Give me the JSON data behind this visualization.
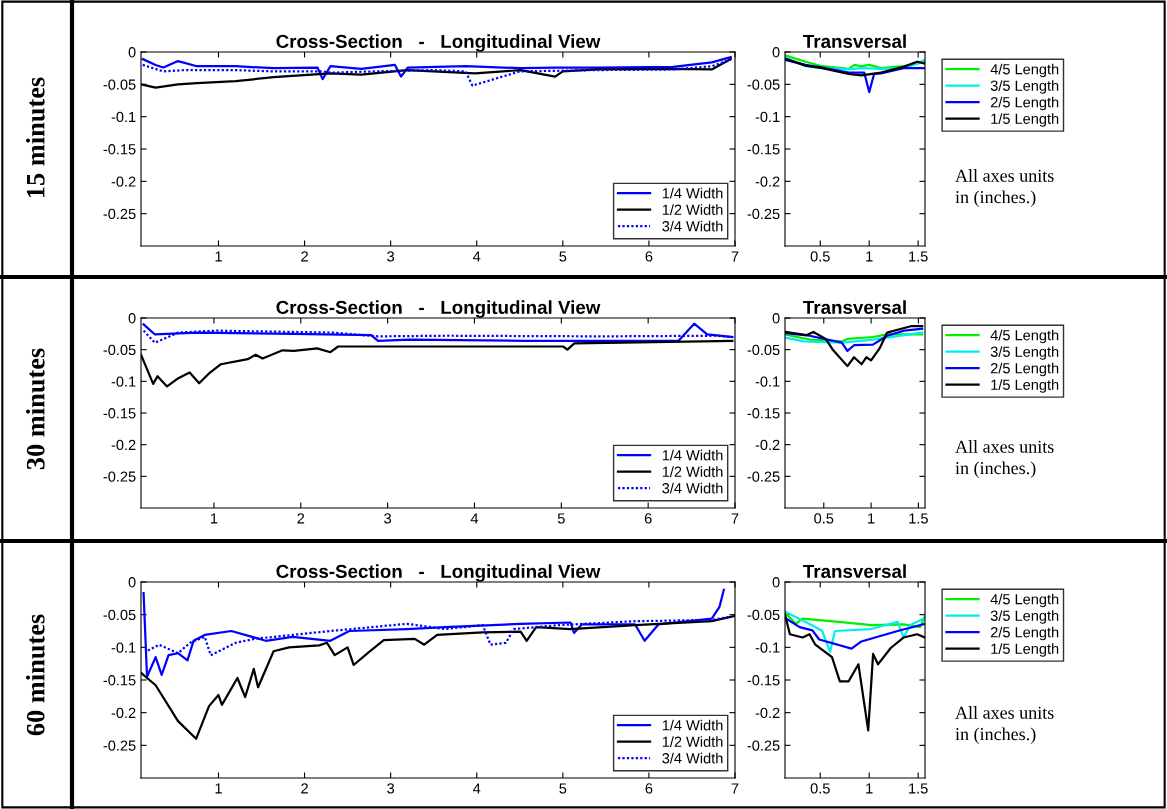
{
  "chart_data": [
    {
      "type": "line",
      "title": "Cross-Section   -   Longitudinal View",
      "xlim": [
        0.1,
        7
      ],
      "ylim": [
        -0.3,
        0
      ],
      "xticks": [
        1,
        2,
        3,
        4,
        5,
        6,
        7
      ],
      "yticks": [
        0,
        -0.05,
        -0.1,
        -0.15,
        -0.2,
        -0.25
      ],
      "legend": "bottom right",
      "annotations": [
        "15 minutes"
      ],
      "series": [
        {
          "name": "1/4 Width",
          "color": "#0000ff",
          "line_style": "solid",
          "x": [
            0.12,
            0.27,
            0.36,
            0.53,
            0.75,
            1.2,
            1.64,
            2.15,
            2.21,
            2.3,
            2.66,
            3.05,
            3.12,
            3.2,
            3.87,
            4.51,
            4.91,
            5.4,
            6.28,
            6.73,
            6.95
          ],
          "values": [
            -0.011,
            -0.02,
            -0.024,
            -0.014,
            -0.022,
            -0.022,
            -0.025,
            -0.024,
            -0.042,
            -0.022,
            -0.026,
            -0.02,
            -0.038,
            -0.024,
            -0.022,
            -0.025,
            -0.024,
            -0.024,
            -0.023,
            -0.016,
            -0.008
          ]
        },
        {
          "name": "1/2 Width",
          "color": "#000000",
          "line_style": "solid",
          "x": [
            0.1,
            0.27,
            0.53,
            0.75,
            1.2,
            1.64,
            2.3,
            2.66,
            3.19,
            3.98,
            4.51,
            4.91,
            5.0,
            5.4,
            6.28,
            6.73,
            6.95
          ],
          "values": [
            -0.05,
            -0.055,
            -0.05,
            -0.048,
            -0.045,
            -0.039,
            -0.033,
            -0.035,
            -0.028,
            -0.033,
            -0.028,
            -0.038,
            -0.03,
            -0.027,
            -0.026,
            -0.027,
            -0.011
          ]
        },
        {
          "name": "3/4 Width",
          "color": "#0000ff",
          "line_style": "dotted",
          "x": [
            0.12,
            0.36,
            0.6,
            1.2,
            1.64,
            2.21,
            2.3,
            2.8,
            3.5,
            3.87,
            3.95,
            4.5,
            5.4,
            6.28,
            6.73,
            6.95
          ],
          "values": [
            -0.02,
            -0.03,
            -0.028,
            -0.028,
            -0.03,
            -0.03,
            -0.032,
            -0.03,
            -0.028,
            -0.03,
            -0.052,
            -0.03,
            -0.028,
            -0.027,
            -0.022,
            -0.012
          ]
        }
      ]
    },
    {
      "type": "line",
      "title": "Transversal",
      "xlim": [
        0.14,
        1.57
      ],
      "ylim": [
        -0.3,
        0
      ],
      "xticks": [
        0.5,
        1,
        1.5
      ],
      "yticks": [
        0,
        -0.05,
        -0.1,
        -0.15,
        -0.2,
        -0.25
      ],
      "legend": "right",
      "annotations": [
        "All axes units\nin (inches.)"
      ],
      "series": [
        {
          "name": "4/5 Length",
          "color": "#00ee00",
          "line_style": "solid",
          "x": [
            0.14,
            0.35,
            0.52,
            0.79,
            0.85,
            0.92,
            1.0,
            1.12,
            1.35,
            1.49,
            1.57
          ],
          "values": [
            -0.005,
            -0.015,
            -0.022,
            -0.026,
            -0.02,
            -0.022,
            -0.02,
            -0.025,
            -0.022,
            -0.018,
            -0.015
          ]
        },
        {
          "name": "3/5 Length",
          "color": "#00eeee",
          "line_style": "solid",
          "x": [
            0.14,
            0.35,
            0.52,
            0.79,
            0.92,
            1.12,
            1.35,
            1.49,
            1.57
          ],
          "values": [
            -0.008,
            -0.022,
            -0.025,
            -0.027,
            -0.025,
            -0.026,
            -0.025,
            -0.018,
            -0.012
          ]
        },
        {
          "name": "2/5 Length",
          "color": "#0000ff",
          "line_style": "solid",
          "x": [
            0.14,
            0.35,
            0.52,
            0.79,
            0.95,
            1.0,
            1.05,
            1.12,
            1.35,
            1.57
          ],
          "values": [
            -0.012,
            -0.02,
            -0.024,
            -0.032,
            -0.032,
            -0.062,
            -0.034,
            -0.033,
            -0.025,
            -0.025
          ]
        },
        {
          "name": "1/5 Length",
          "color": "#000000",
          "line_style": "solid",
          "x": [
            0.14,
            0.35,
            0.52,
            0.79,
            0.92,
            1.12,
            1.35,
            1.49,
            1.57
          ],
          "values": [
            -0.01,
            -0.021,
            -0.025,
            -0.034,
            -0.036,
            -0.032,
            -0.023,
            -0.015,
            -0.018
          ]
        }
      ]
    },
    {
      "type": "line",
      "title": "Cross-Section   -   Longitudinal View",
      "xlim": [
        0.16,
        7
      ],
      "ylim": [
        -0.3,
        0
      ],
      "xticks": [
        1,
        2,
        3,
        4,
        5,
        6,
        7
      ],
      "yticks": [
        0,
        -0.05,
        -0.1,
        -0.15,
        -0.2,
        -0.25
      ],
      "legend": "bottom right",
      "annotations": [
        "30 minutes"
      ],
      "series": [
        {
          "name": "1/4 Width",
          "color": "#0000ff",
          "line_style": "solid",
          "x": [
            0.19,
            0.32,
            0.81,
            1.92,
            2.81,
            2.89,
            3.25,
            4.58,
            6.35,
            6.53,
            6.68,
            6.97
          ],
          "values": [
            -0.01,
            -0.026,
            -0.023,
            -0.025,
            -0.027,
            -0.036,
            -0.034,
            -0.036,
            -0.036,
            -0.009,
            -0.026,
            -0.03
          ]
        },
        {
          "name": "1/2 Width",
          "color": "#000000",
          "line_style": "solid",
          "x": [
            0.16,
            0.3,
            0.35,
            0.46,
            0.59,
            0.72,
            0.83,
            0.94,
            1.08,
            1.39,
            1.48,
            1.56,
            1.79,
            1.92,
            2.19,
            2.34,
            2.43,
            5.02,
            5.07,
            5.15,
            6.97
          ],
          "values": [
            -0.058,
            -0.104,
            -0.092,
            -0.108,
            -0.095,
            -0.086,
            -0.103,
            -0.088,
            -0.073,
            -0.065,
            -0.058,
            -0.064,
            -0.051,
            -0.052,
            -0.048,
            -0.054,
            -0.045,
            -0.045,
            -0.05,
            -0.04,
            -0.036
          ]
        },
        {
          "name": "3/4 Width",
          "color": "#0000ff",
          "line_style": "dotted",
          "x": [
            0.19,
            0.32,
            0.59,
            1.03,
            2.36,
            2.89,
            3.69,
            5.46,
            6.79,
            6.97
          ],
          "values": [
            -0.02,
            -0.039,
            -0.023,
            -0.02,
            -0.023,
            -0.029,
            -0.028,
            -0.029,
            -0.028,
            -0.03
          ]
        }
      ]
    },
    {
      "type": "line",
      "title": "Transversal",
      "xlim": [
        0.09,
        1.57
      ],
      "ylim": [
        -0.3,
        0
      ],
      "xticks": [
        0.5,
        1,
        1.5
      ],
      "yticks": [
        0,
        -0.05,
        -0.1,
        -0.15,
        -0.2,
        -0.25
      ],
      "legend": "right",
      "annotations": [
        "All axes units\nin (inches.)"
      ],
      "series": [
        {
          "name": "4/5 Length",
          "color": "#00ee00",
          "line_style": "solid",
          "x": [
            0.09,
            0.35,
            0.69,
            0.75,
            1.02,
            1.17,
            1.54
          ],
          "values": [
            -0.026,
            -0.034,
            -0.037,
            -0.033,
            -0.03,
            -0.026,
            -0.026
          ]
        },
        {
          "name": "3/5 Length",
          "color": "#00eeee",
          "line_style": "solid",
          "x": [
            0.09,
            0.29,
            0.69,
            1.02,
            1.54
          ],
          "values": [
            -0.031,
            -0.037,
            -0.039,
            -0.034,
            -0.023
          ]
        },
        {
          "name": "2/5 Length",
          "color": "#0000ff",
          "line_style": "solid",
          "x": [
            0.09,
            0.35,
            0.69,
            0.75,
            0.82,
            1.02,
            1.17,
            1.35,
            1.54
          ],
          "values": [
            -0.024,
            -0.028,
            -0.039,
            -0.052,
            -0.043,
            -0.042,
            -0.028,
            -0.02,
            -0.017
          ]
        },
        {
          "name": "1/5 Length",
          "color": "#000000",
          "line_style": "solid",
          "x": [
            0.09,
            0.32,
            0.39,
            0.52,
            0.6,
            0.75,
            0.82,
            0.9,
            0.95,
            1.0,
            1.09,
            1.17,
            1.32,
            1.42,
            1.54
          ],
          "values": [
            -0.022,
            -0.027,
            -0.022,
            -0.033,
            -0.051,
            -0.076,
            -0.062,
            -0.073,
            -0.062,
            -0.067,
            -0.048,
            -0.023,
            -0.017,
            -0.013,
            -0.013
          ]
        }
      ]
    },
    {
      "type": "line",
      "title": "Cross-Section   -   Longitudinal View",
      "xlim": [
        0.1,
        7
      ],
      "ylim": [
        -0.3,
        0
      ],
      "xticks": [
        1,
        2,
        3,
        4,
        5,
        6,
        7
      ],
      "yticks": [
        0,
        -0.05,
        -0.1,
        -0.15,
        -0.2,
        -0.25
      ],
      "legend": "bottom right",
      "annotations": [
        "60 minutes"
      ],
      "series": [
        {
          "name": "1/4 Width",
          "color": "#0000ff",
          "line_style": "solid",
          "x": [
            0.13,
            0.17,
            0.27,
            0.34,
            0.42,
            0.53,
            0.64,
            0.71,
            0.84,
            1.15,
            1.55,
            1.86,
            2.3,
            2.52,
            3.19,
            3.63,
            4.51,
            5.09,
            5.13,
            5.22,
            5.84,
            5.95,
            6.11,
            6.73,
            6.82,
            6.87
          ],
          "values": [
            -0.017,
            -0.145,
            -0.115,
            -0.142,
            -0.112,
            -0.109,
            -0.12,
            -0.09,
            -0.081,
            -0.075,
            -0.09,
            -0.084,
            -0.09,
            -0.075,
            -0.072,
            -0.069,
            -0.064,
            -0.062,
            -0.078,
            -0.065,
            -0.065,
            -0.09,
            -0.065,
            -0.056,
            -0.038,
            -0.012
          ]
        },
        {
          "name": "1/2 Width",
          "color": "#000000",
          "line_style": "solid",
          "x": [
            0.1,
            0.27,
            0.53,
            0.74,
            0.89,
            1.0,
            1.04,
            1.22,
            1.31,
            1.41,
            1.46,
            1.64,
            1.82,
            2.17,
            2.26,
            2.35,
            2.5,
            2.57,
            2.74,
            2.92,
            3.28,
            3.39,
            3.54,
            4.07,
            4.51,
            4.58,
            4.69,
            5.09,
            5.84,
            6.73,
            6.99
          ],
          "values": [
            -0.139,
            -0.158,
            -0.213,
            -0.24,
            -0.19,
            -0.173,
            -0.188,
            -0.147,
            -0.176,
            -0.133,
            -0.161,
            -0.106,
            -0.1,
            -0.097,
            -0.093,
            -0.112,
            -0.1,
            -0.127,
            -0.108,
            -0.089,
            -0.087,
            -0.096,
            -0.081,
            -0.077,
            -0.076,
            -0.09,
            -0.069,
            -0.072,
            -0.066,
            -0.06,
            -0.052
          ]
        },
        {
          "name": "3/4 Width",
          "color": "#0000ff",
          "line_style": "dotted",
          "x": [
            0.18,
            0.31,
            0.53,
            0.67,
            0.84,
            0.91,
            1.2,
            1.42,
            1.86,
            2.3,
            3.19,
            3.63,
            4.07,
            4.16,
            4.34,
            4.43,
            4.96,
            5.84,
            6.73,
            6.95
          ],
          "values": [
            -0.105,
            -0.096,
            -0.109,
            -0.093,
            -0.084,
            -0.112,
            -0.093,
            -0.087,
            -0.081,
            -0.075,
            -0.064,
            -0.072,
            -0.066,
            -0.096,
            -0.093,
            -0.072,
            -0.066,
            -0.06,
            -0.058,
            -0.053
          ]
        }
      ]
    },
    {
      "type": "line",
      "title": "Transversal",
      "xlim": [
        0.14,
        1.57
      ],
      "ylim": [
        -0.3,
        0
      ],
      "xticks": [
        0.5,
        1,
        1.5
      ],
      "yticks": [
        0,
        -0.05,
        -0.1,
        -0.15,
        -0.2,
        -0.25
      ],
      "legend": "right",
      "annotations": [
        "All axes units\nin (inches.)"
      ],
      "series": [
        {
          "name": "4/5 Length",
          "color": "#00ee00",
          "line_style": "solid",
          "x": [
            0.14,
            0.25,
            0.32,
            0.69,
            1.02,
            1.35,
            1.52,
            1.57
          ],
          "values": [
            -0.047,
            -0.064,
            -0.056,
            -0.061,
            -0.066,
            -0.065,
            -0.069,
            -0.052
          ]
        },
        {
          "name": "3/5 Length",
          "color": "#00eeee",
          "line_style": "solid",
          "x": [
            0.14,
            0.45,
            0.52,
            0.6,
            0.65,
            1.02,
            1.29,
            1.35,
            1.42,
            1.57
          ],
          "values": [
            -0.045,
            -0.069,
            -0.075,
            -0.107,
            -0.075,
            -0.072,
            -0.061,
            -0.085,
            -0.066,
            -0.055
          ]
        },
        {
          "name": "2/5 Length",
          "color": "#0000ff",
          "line_style": "solid",
          "x": [
            0.14,
            0.29,
            0.42,
            0.49,
            0.82,
            0.92,
            1.29,
            1.57
          ],
          "values": [
            -0.055,
            -0.069,
            -0.074,
            -0.088,
            -0.102,
            -0.091,
            -0.075,
            -0.064
          ]
        },
        {
          "name": "1/5 Length",
          "color": "#000000",
          "line_style": "solid",
          "x": [
            0.14,
            0.19,
            0.32,
            0.39,
            0.45,
            0.62,
            0.7,
            0.79,
            0.89,
            0.99,
            1.04,
            1.09,
            1.22,
            1.35,
            1.49,
            1.57
          ],
          "values": [
            -0.05,
            -0.08,
            -0.085,
            -0.08,
            -0.096,
            -0.115,
            -0.152,
            -0.152,
            -0.126,
            -0.227,
            -0.11,
            -0.126,
            -0.101,
            -0.085,
            -0.08,
            -0.085
          ]
        }
      ]
    }
  ]
}
